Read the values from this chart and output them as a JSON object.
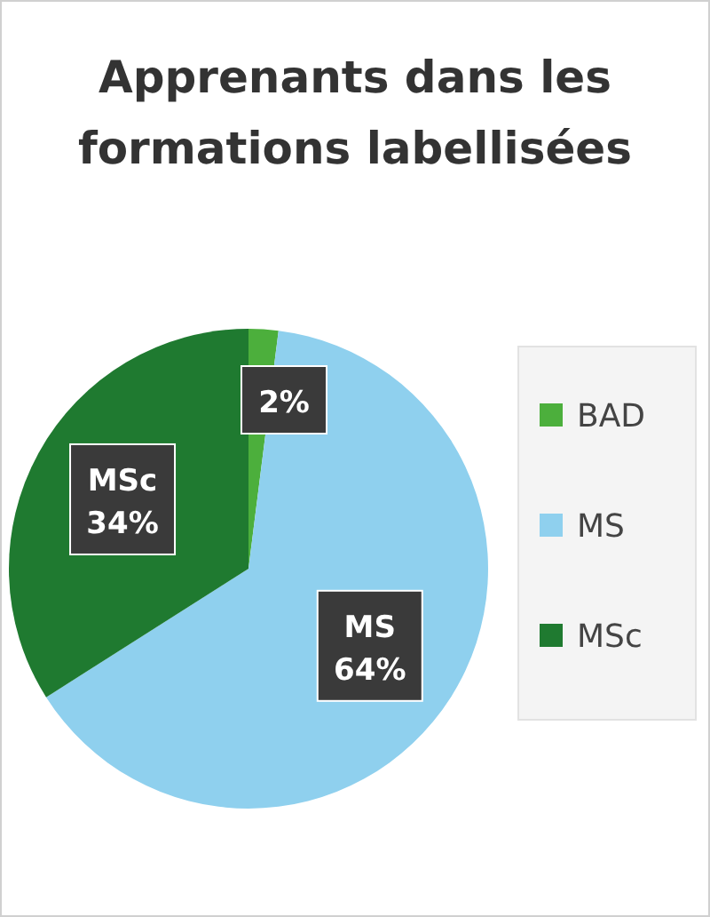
{
  "chart_data": {
    "type": "pie",
    "title": "Apprenants dans les formations labellisées",
    "categories": [
      "BAD",
      "MS",
      "MSc"
    ],
    "values": [
      2,
      64,
      34
    ],
    "colors": [
      "#4caf3c",
      "#8fd0ee",
      "#1f7a30"
    ],
    "value_labels": [
      "2%",
      "MS\n64%",
      "MSc\n34%"
    ],
    "legend": "right"
  }
}
